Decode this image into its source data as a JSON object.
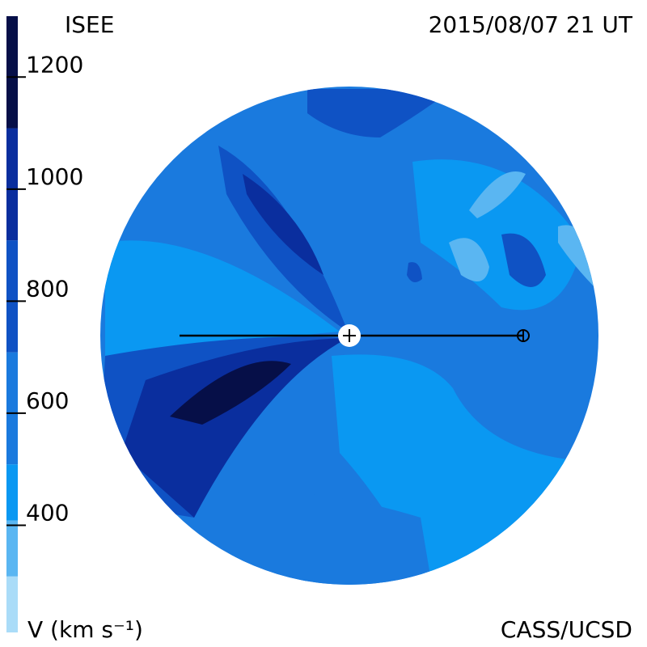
{
  "chart_data": {
    "type": "velocity-map",
    "title": "ISEE",
    "subtitle": "2015/08/07 21 UT",
    "credit": "CASS/UCSD",
    "colorbar": {
      "label": "V (km s⁻¹)",
      "lim": [
        200,
        1300
      ],
      "ticks": [
        400,
        600,
        800,
        1000,
        1200
      ],
      "bounds": [
        200,
        300,
        400,
        500,
        700,
        900,
        1100,
        1300
      ],
      "colors": [
        "#aadcf8",
        "#5ab6f2",
        "#0a98f2",
        "#1a7ade",
        "#0f52c4",
        "#0a2e9e",
        "#060f48"
      ]
    }
  }
}
